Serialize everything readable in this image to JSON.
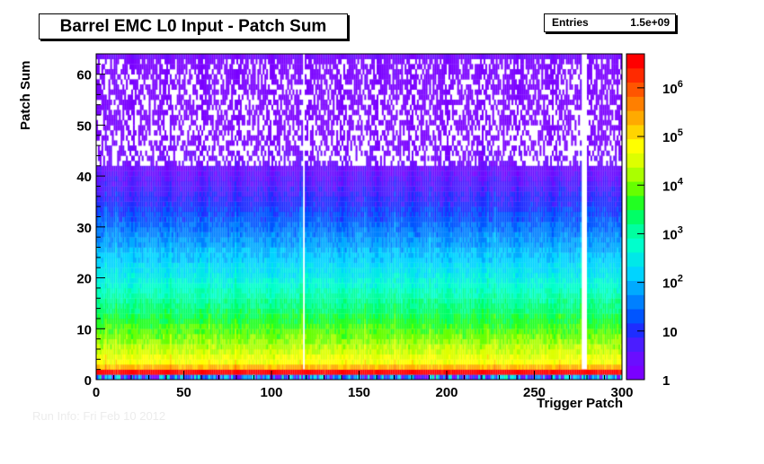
{
  "page": {
    "footer_text": "Run Info: Fri Feb 10 2012"
  },
  "chart_data": {
    "type": "heatmap",
    "title": "Barrel EMC L0 Input - Patch Sum",
    "stats": {
      "label": "Entries",
      "value": "1.5e+09"
    },
    "xlabel": "Trigger Patch",
    "ylabel": "Patch Sum",
    "xlim": [
      0,
      300
    ],
    "ylim": [
      0,
      64
    ],
    "xticks": [
      0,
      50,
      100,
      150,
      200,
      250,
      300
    ],
    "yticks": [
      0,
      10,
      20,
      30,
      40,
      50,
      60
    ],
    "z_scale": "log",
    "zlim": [
      1,
      5000000
    ],
    "colorbar_ticks": [
      {
        "value": 1,
        "label": "1"
      },
      {
        "value": 10,
        "label": "10"
      },
      {
        "value": 100,
        "label": "10^2"
      },
      {
        "value": 1000,
        "label": "10^3"
      },
      {
        "value": 10000,
        "label": "10^4"
      },
      {
        "value": 100000,
        "label": "10^5"
      },
      {
        "value": 1000000,
        "label": "10^6"
      }
    ],
    "palette": [
      "#7a00ff",
      "#6a0eff",
      "#4b1dff",
      "#1e2dff",
      "#0055ff",
      "#0080ff",
      "#00aaff",
      "#00d4ff",
      "#00e8e8",
      "#00ffcc",
      "#00ffa0",
      "#00ff66",
      "#22ff22",
      "#66ff00",
      "#aaff00",
      "#ddff00",
      "#ffff00",
      "#ffd400",
      "#ffaa00",
      "#ff7f00",
      "#ff5500",
      "#ff2a00",
      "#ff0000"
    ],
    "row_levels": [
      {
        "sum": 0,
        "counts": 200
      },
      {
        "sum": 1,
        "counts": 4000000
      },
      {
        "sum": 2,
        "counts": 200000
      },
      {
        "sum": 3,
        "counts": 60000
      },
      {
        "sum": 5,
        "counts": 25000
      },
      {
        "sum": 10,
        "counts": 5000
      },
      {
        "sum": 15,
        "counts": 1200
      },
      {
        "sum": 20,
        "counts": 300
      },
      {
        "sum": 25,
        "counts": 90
      },
      {
        "sum": 30,
        "counts": 25
      },
      {
        "sum": 35,
        "counts": 8
      },
      {
        "sum": 40,
        "counts": 3
      },
      {
        "sum": 45,
        "counts": 1.5
      },
      {
        "sum": 50,
        "counts": 1
      },
      {
        "sum": 63,
        "counts": 1
      }
    ],
    "empty_columns": [
      118,
      277,
      278,
      279
    ],
    "overflow_row": {
      "sum": 63,
      "counts": 2
    }
  }
}
